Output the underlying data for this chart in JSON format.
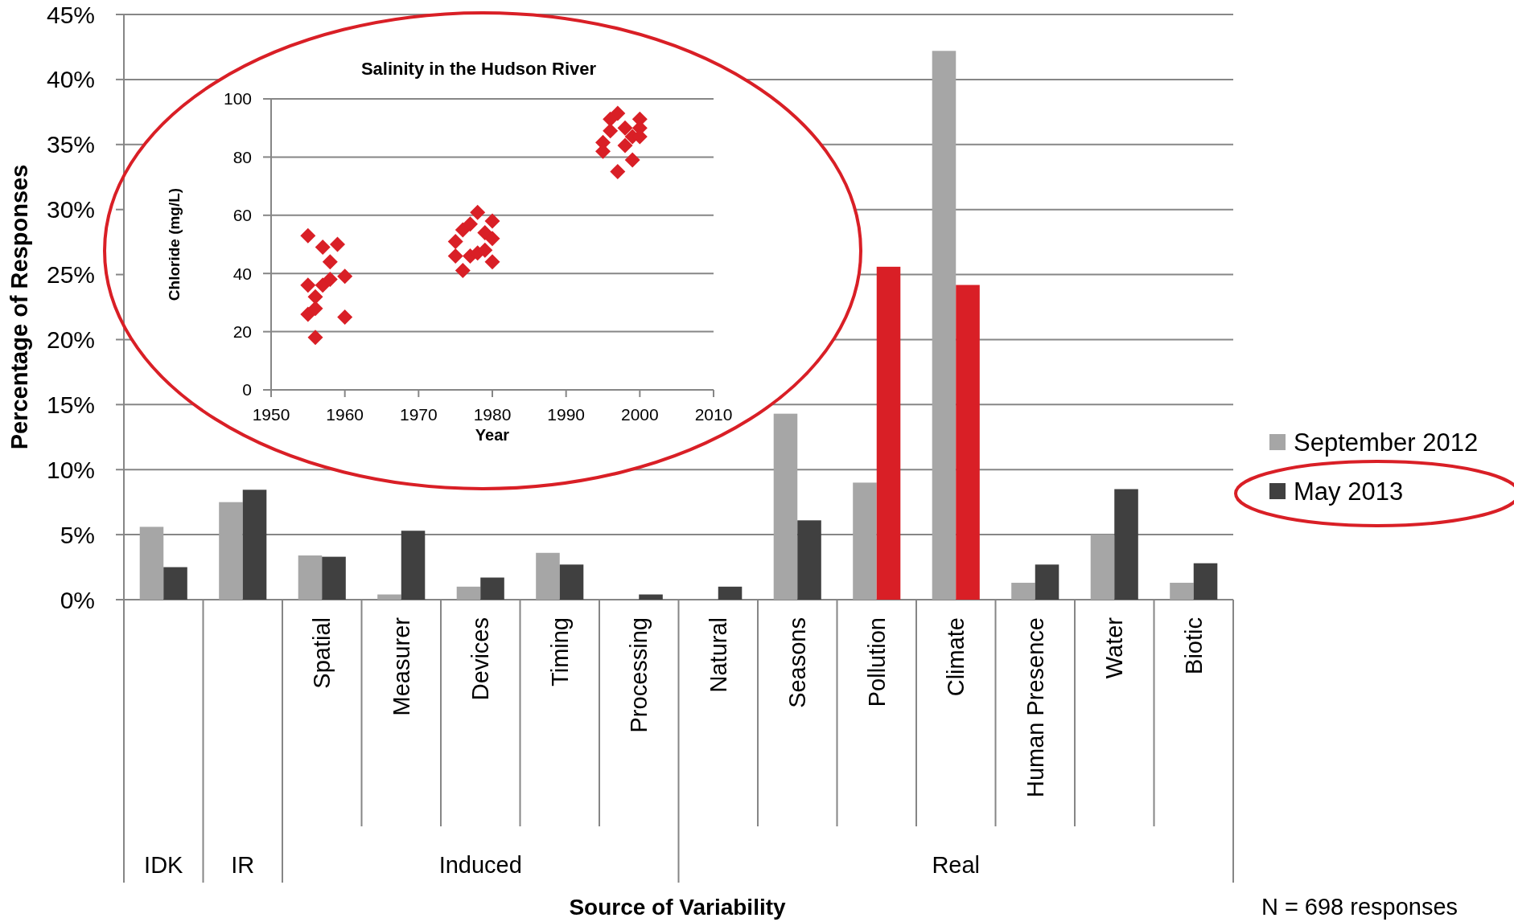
{
  "chart_data": [
    {
      "type": "bar",
      "xlabel": "Source of Variability",
      "ylabel": "Percentage of Responses",
      "categories": [
        null,
        null,
        "Spatial",
        "Measurer",
        "Devices",
        "Timing",
        "Processing",
        "Natural",
        "Seasons",
        "Pollution",
        "Climate",
        "Human Presence",
        "Water",
        "Biotic"
      ],
      "series": [
        {
          "name": "September 2012",
          "color": "#a6a6a6",
          "values": [
            5.6,
            7.5,
            3.4,
            0.4,
            1.0,
            3.6,
            0,
            0,
            14.3,
            9.0,
            42.2,
            1.3,
            5.0,
            1.3
          ]
        },
        {
          "name": "May 2013",
          "color": "#404040",
          "colors": [
            "#404040",
            "#404040",
            "#404040",
            "#404040",
            "#404040",
            "#404040",
            "#404040",
            "#404040",
            "#404040",
            "#d91f26",
            "#d91f26",
            "#404040",
            "#404040",
            "#404040"
          ],
          "values": [
            2.5,
            8.45,
            3.3,
            5.3,
            1.7,
            2.7,
            0.4,
            1.0,
            6.1,
            25.6,
            24.2,
            2.7,
            8.5,
            2.8
          ]
        }
      ],
      "ylim": [
        0,
        45
      ],
      "yticks": [
        {
          "value": 0,
          "label": "0%"
        },
        {
          "value": 5,
          "label": "5%"
        },
        {
          "value": 10,
          "label": "10%"
        },
        {
          "value": 15,
          "label": "15%"
        },
        {
          "value": 20,
          "label": "20%"
        },
        {
          "value": 25,
          "label": "25%"
        },
        {
          "value": 30,
          "label": "30%"
        },
        {
          "value": 35,
          "label": "35%"
        },
        {
          "value": 40,
          "label": "40%"
        },
        {
          "value": 45,
          "label": "45%"
        }
      ],
      "grid": "y",
      "legend": "right",
      "annotations": [
        "IDK",
        "IR",
        "Induced",
        "Real",
        "N = 698 responses"
      ]
    },
    {
      "type": "scatter",
      "title": "Salinity in the Hudson River",
      "xlabel": "Year",
      "ylabel": "Chloride (mg/L)",
      "marker": "diamond",
      "grid": "y",
      "xlim": [
        1950,
        2010
      ],
      "xticks": [
        1950,
        1960,
        1970,
        1980,
        1990,
        2000,
        2010
      ],
      "ylim": [
        0,
        100
      ],
      "yticks": [
        0,
        20,
        40,
        60,
        80,
        100
      ],
      "series": [
        {
          "color": "#d91f26",
          "x": [
            1955,
            1957,
            1959,
            1958,
            1955,
            1957,
            1958,
            1960,
            1956,
            1955,
            1956,
            1960,
            1956,
            1978,
            1980,
            1976,
            1977,
            1975,
            1979,
            1980,
            1975,
            1977,
            1978,
            1979,
            1980,
            1976,
            1997,
            1996,
            2000,
            1996,
            1998,
            2000,
            1999,
            2000,
            1995,
            1995,
            1998,
            1999,
            1997
          ],
          "values": [
            53,
            49,
            50,
            44,
            36,
            36,
            38,
            39,
            32,
            26,
            28,
            25,
            18,
            61,
            58,
            55,
            57,
            51,
            54,
            52,
            46,
            46,
            47,
            48,
            44,
            41,
            95,
            93,
            93,
            89,
            90,
            90,
            87,
            87,
            85,
            82,
            84,
            79,
            75
          ]
        }
      ]
    }
  ]
}
